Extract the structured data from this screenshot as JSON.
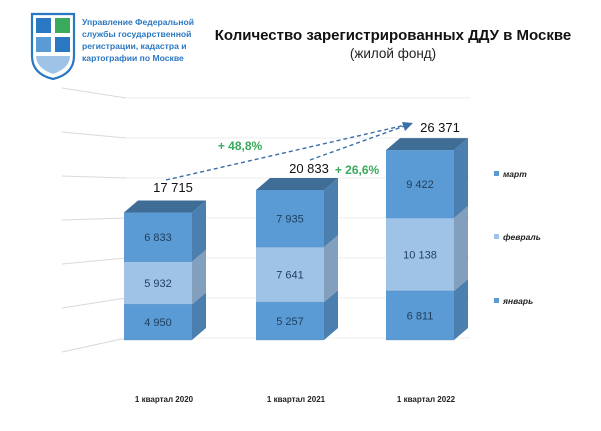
{
  "header": {
    "org_lines": [
      "Управление Федеральной",
      "службы государственной",
      "регистрации, кадастра и",
      "картографии по Москве"
    ],
    "title": "Количество зарегистрированных ДДУ в Москве",
    "subtitle": "(жилой фонд)"
  },
  "colors": {
    "january": "#5b9bd5",
    "february": "#9fc3e7",
    "march": "#5b9bd5",
    "growth_text": "#3aaa5c",
    "brand_blue": "#2b78c2",
    "grid": "#d9d9d9"
  },
  "chart_data": {
    "type": "bar",
    "stacked": true,
    "style": "3d-column",
    "categories": [
      "1 квартал 2020",
      "1 квартал 2021",
      "1 квартал 2022"
    ],
    "series": [
      {
        "name": "январь",
        "values": [
          4950,
          5257,
          6811
        ],
        "labels": [
          "4 950",
          "5 257",
          "6 811"
        ]
      },
      {
        "name": "февраль",
        "values": [
          5932,
          7641,
          10138
        ],
        "labels": [
          "5 932",
          "7 641",
          "10 138"
        ]
      },
      {
        "name": "март",
        "values": [
          6833,
          7935,
          9422
        ],
        "labels": [
          "6 833",
          "7 935",
          "9 422"
        ]
      }
    ],
    "totals": [
      17715,
      20833,
      26371
    ],
    "total_labels": [
      "17 715",
      "20 833",
      "26 371"
    ],
    "growth_labels": [
      "+ 48,8%",
      "+ 26,6%"
    ],
    "legend_position": "right",
    "grid": true
  }
}
